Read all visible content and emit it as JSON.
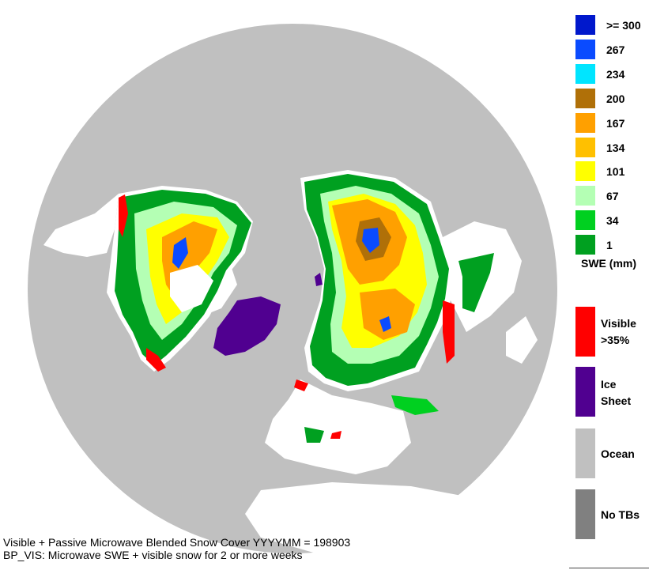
{
  "legend": {
    "swe_scale": [
      {
        "label": ">= 300",
        "color": "#0018cc"
      },
      {
        "label": "267",
        "color": "#0a4bff"
      },
      {
        "label": "234",
        "color": "#00e5ff"
      },
      {
        "label": "200",
        "color": "#b07008"
      },
      {
        "label": "167",
        "color": "#ffa000"
      },
      {
        "label": "134",
        "color": "#ffc000"
      },
      {
        "label": "101",
        "color": "#ffff00"
      },
      {
        "label": "67",
        "color": "#b4ffb4"
      },
      {
        "label": "34",
        "color": "#00d020"
      },
      {
        "label": "1",
        "color": "#00a020"
      }
    ],
    "swe_unit": "SWE (mm)",
    "categories": [
      {
        "line1": "Visible",
        "line2": ">35%",
        "color": "#ff0000"
      },
      {
        "line1": "Ice",
        "line2": "Sheet",
        "color": "#500090"
      },
      {
        "line1": "Ocean",
        "line2": "",
        "color": "#c0c0c0"
      },
      {
        "line1": "No TBs",
        "line2": "",
        "color": "#808080"
      }
    ]
  },
  "footer": {
    "line1": "Visible + Passive Microwave Blended Snow Cover YYYYMM = 198903",
    "line2": "BP_VIS: Microwave SWE + visible snow for 2 or more weeks"
  },
  "map": {
    "ocean_color": "#c0c0c0",
    "land_color": "#ffffff",
    "ice_sheet_color": "#500090",
    "visible_snow_color": "#ff0000"
  }
}
